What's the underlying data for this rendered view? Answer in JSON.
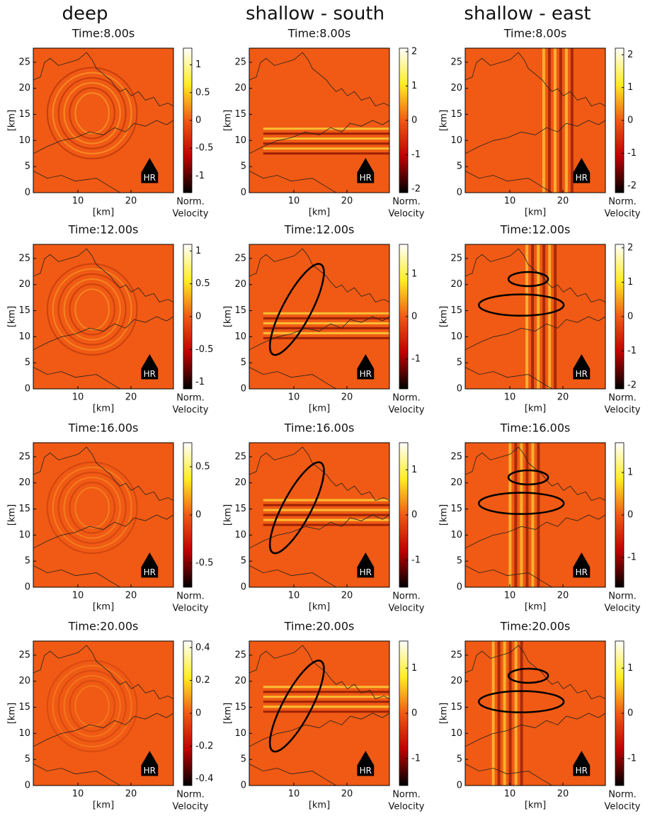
{
  "columns": [
    "deep",
    "shallow - south",
    "shallow - east"
  ],
  "axes": {
    "xlim": [
      1.6,
      28
    ],
    "ylim": [
      0,
      27.7
    ],
    "xticks": [
      10,
      20
    ],
    "yticks": [
      0,
      5,
      10,
      15,
      20,
      25
    ],
    "xlabel": "[km]",
    "ylabel": "[km]"
  },
  "colorbar_label": [
    "Norm.",
    "Velocity"
  ],
  "marker": "HR",
  "panels": [
    {
      "title": "Time:8.00s",
      "colorbar": {
        "lim": [
          -1.3,
          1.3
        ],
        "ticks": [
          1,
          0.5,
          0,
          -0.5,
          -1
        ]
      }
    },
    {
      "title": "Time:8.00s",
      "colorbar": {
        "lim": [
          -2.1,
          2.1
        ],
        "ticks": [
          2,
          1,
          0,
          -1,
          -2
        ]
      }
    },
    {
      "title": "Time:8.00s",
      "colorbar": {
        "lim": [
          -2.2,
          2.2
        ],
        "ticks": [
          2,
          1,
          0,
          -1,
          -2
        ]
      }
    },
    {
      "title": "Time:12.00s",
      "colorbar": {
        "lim": [
          -1.1,
          1.1
        ],
        "ticks": [
          1,
          0.5,
          0,
          -0.5,
          -1
        ]
      }
    },
    {
      "title": "Time:12.00s",
      "colorbar": {
        "lim": [
          -1.7,
          1.7
        ],
        "ticks": [
          1,
          0,
          -1
        ]
      }
    },
    {
      "title": "Time:12.00s",
      "colorbar": {
        "lim": [
          -2.1,
          2.1
        ],
        "ticks": [
          2,
          1,
          0,
          -1,
          -2
        ]
      }
    },
    {
      "title": "Time:16.00s",
      "colorbar": {
        "lim": [
          -0.75,
          0.75
        ],
        "ticks": [
          0.5,
          0,
          -0.5
        ]
      }
    },
    {
      "title": "Time:16.00s",
      "colorbar": {
        "lim": [
          -1.6,
          1.6
        ],
        "ticks": [
          1,
          0,
          -1
        ]
      }
    },
    {
      "title": "Time:16.00s",
      "colorbar": {
        "lim": [
          -1.7,
          1.7
        ],
        "ticks": [
          1,
          0,
          -1
        ]
      }
    },
    {
      "title": "Time:20.00s",
      "colorbar": {
        "lim": [
          -0.44,
          0.44
        ],
        "ticks": [
          0.4,
          0.2,
          0,
          -0.2,
          -0.4
        ]
      }
    },
    {
      "title": "Time:20.00s",
      "colorbar": {
        "lim": [
          -1.6,
          1.6
        ],
        "ticks": [
          1,
          0,
          -1
        ]
      }
    },
    {
      "title": "Time:20.00s",
      "colorbar": {
        "lim": [
          -1.6,
          1.6
        ],
        "ticks": [
          1,
          0,
          -1
        ]
      }
    }
  ]
}
